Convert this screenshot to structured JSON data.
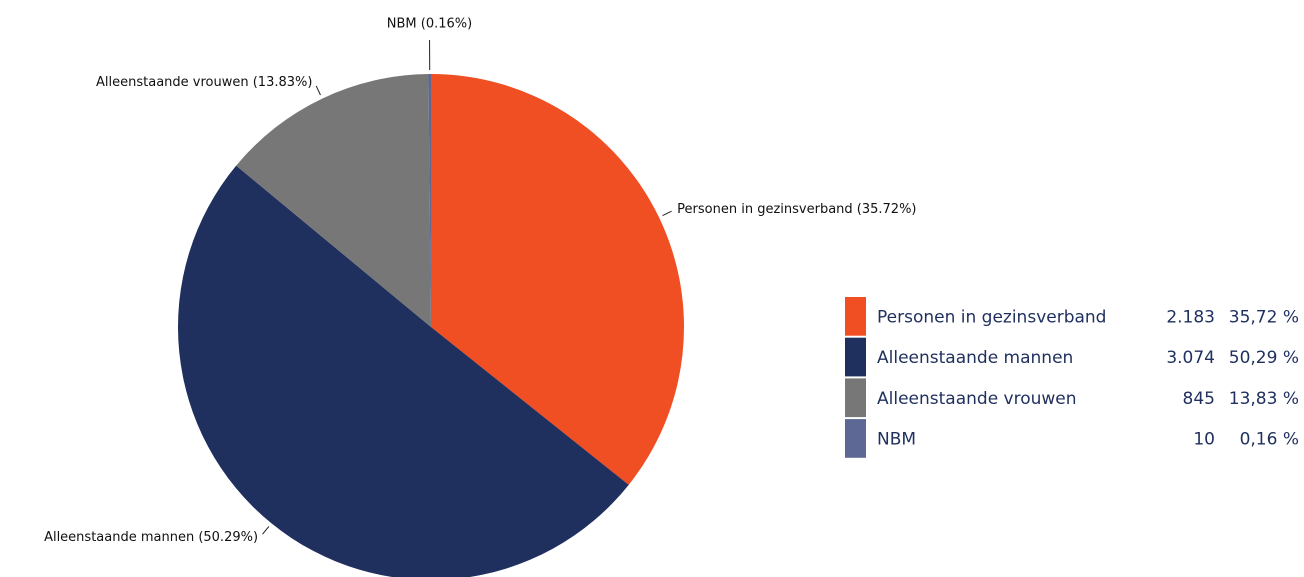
{
  "chart_data": {
    "type": "pie",
    "categories": [
      "Personen in gezinsverband",
      "Alleenstaande mannen",
      "Alleenstaande vrouwen",
      "NBM"
    ],
    "values": [
      35.72,
      50.29,
      13.83,
      0.16
    ],
    "value_labels": [
      "Personen in gezinsverband (35.72%)",
      "Alleenstaande mannen (50.29%)",
      "Alleenstaande vrouwen (13.83%)",
      "NBM (0.16%)"
    ],
    "colors": [
      "#f04e23",
      "#1f2f5e",
      "#777777",
      "#5d6894"
    ],
    "legend": {
      "counts": [
        {
          "value": 2183,
          "label": "2.183"
        },
        {
          "value": 3074,
          "label": "3.074"
        },
        {
          "value": 845,
          "label": "845"
        },
        {
          "value": 10,
          "label": "10"
        }
      ],
      "percent_labels": [
        "35,72 %",
        "50,29 %",
        "13,83 %",
        "0,16 %"
      ]
    }
  }
}
